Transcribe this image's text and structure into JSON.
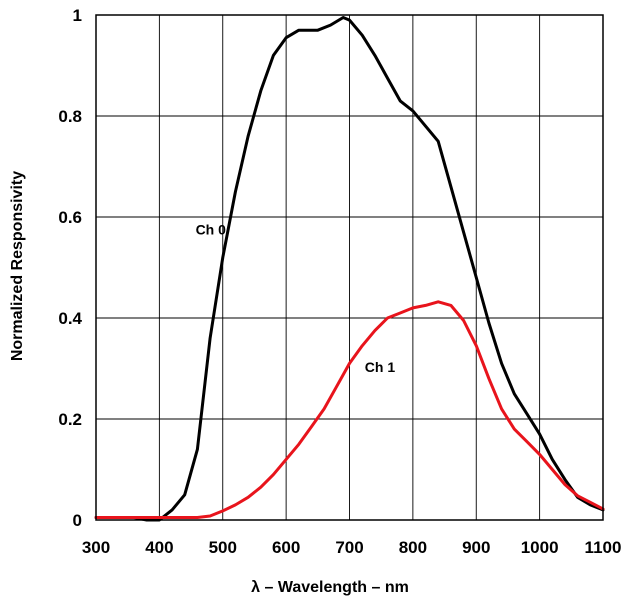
{
  "chart_data": {
    "type": "line",
    "title": "",
    "xlabel": "λ – Wavelength – nm",
    "ylabel": "Normalized Responsivity",
    "xlim": [
      300,
      1100
    ],
    "ylim": [
      0,
      1
    ],
    "x_ticks": [
      "300",
      "400",
      "500",
      "600",
      "700",
      "800",
      "900",
      "1000",
      "1100"
    ],
    "y_ticks": [
      "0",
      "0.2",
      "0.4",
      "0.6",
      "0.8",
      "1"
    ],
    "grid": true,
    "legend": "none",
    "series": [
      {
        "name": "Ch 0",
        "color": "#000000",
        "x": [
          300,
          360,
          380,
          400,
          420,
          440,
          460,
          480,
          500,
          520,
          540,
          560,
          580,
          600,
          620,
          650,
          670,
          690,
          700,
          720,
          740,
          760,
          780,
          800,
          840,
          860,
          880,
          900,
          920,
          940,
          960,
          980,
          1000,
          1020,
          1040,
          1060,
          1080,
          1100
        ],
        "y": [
          0.005,
          0.005,
          0.0,
          0.0,
          0.02,
          0.05,
          0.14,
          0.36,
          0.52,
          0.65,
          0.76,
          0.85,
          0.92,
          0.955,
          0.97,
          0.97,
          0.98,
          0.995,
          0.99,
          0.96,
          0.92,
          0.875,
          0.83,
          0.81,
          0.75,
          0.66,
          0.57,
          0.48,
          0.39,
          0.31,
          0.25,
          0.21,
          0.17,
          0.12,
          0.08,
          0.045,
          0.03,
          0.02
        ]
      },
      {
        "name": "Ch 1",
        "color": "#e8141c",
        "x": [
          300,
          350,
          400,
          440,
          460,
          480,
          500,
          520,
          540,
          560,
          580,
          600,
          620,
          640,
          660,
          680,
          700,
          720,
          740,
          760,
          780,
          800,
          820,
          840,
          860,
          880,
          900,
          920,
          940,
          960,
          980,
          1000,
          1020,
          1040,
          1060,
          1080,
          1100
        ],
        "y": [
          0.005,
          0.005,
          0.005,
          0.005,
          0.005,
          0.008,
          0.018,
          0.03,
          0.045,
          0.065,
          0.09,
          0.12,
          0.15,
          0.185,
          0.22,
          0.265,
          0.31,
          0.345,
          0.375,
          0.4,
          0.41,
          0.42,
          0.425,
          0.432,
          0.425,
          0.395,
          0.345,
          0.28,
          0.22,
          0.18,
          0.155,
          0.13,
          0.1,
          0.07,
          0.048,
          0.035,
          0.022
        ]
      }
    ],
    "annotations": [
      {
        "text": "Ch 0",
        "series": 0,
        "x": 505,
        "y": 0.565
      },
      {
        "text": "Ch 1",
        "series": 1,
        "x": 772,
        "y": 0.293
      }
    ]
  }
}
